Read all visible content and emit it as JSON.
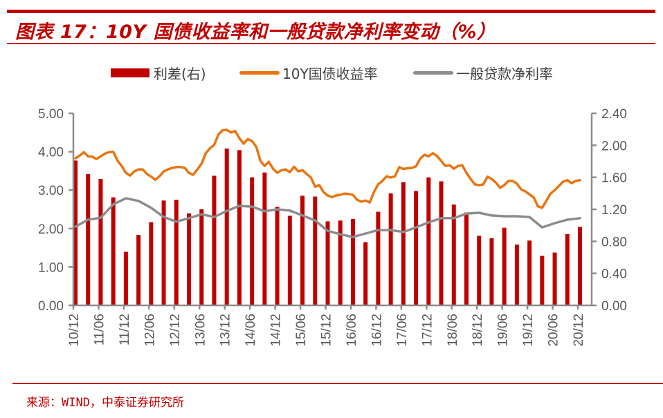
{
  "header": {
    "title": "图表 17：10Y 国债收益率和一般贷款净利率变动（%）"
  },
  "footer": {
    "source": "来源：WIND，中泰证券研究所"
  },
  "legend": {
    "items": [
      {
        "label": "利差(右)",
        "type": "bar",
        "color": "#c00000"
      },
      {
        "label": "10Y国债收益率",
        "type": "line",
        "color": "#e87511"
      },
      {
        "label": "一般贷款净利率",
        "type": "line",
        "color": "#8c8c8c"
      }
    ]
  },
  "chart_data": {
    "type": "bar+line",
    "title": "10Y 国债收益率和一般贷款净利率变动（%）",
    "x_tick_labels": [
      "10/12",
      "11/06",
      "11/12",
      "12/06",
      "12/12",
      "13/06",
      "13/12",
      "14/06",
      "14/12",
      "15/06",
      "15/12",
      "16/06",
      "16/12",
      "17/06",
      "17/12",
      "18/06",
      "18/12",
      "19/06",
      "19/12",
      "20/06",
      "20/12"
    ],
    "left_axis": {
      "min": 0,
      "max": 5,
      "ticks": [
        "0.00",
        "1.00",
        "2.00",
        "3.00",
        "4.00",
        "5.00"
      ]
    },
    "right_axis": {
      "min": 0,
      "max": 2.4,
      "ticks": [
        "0.00",
        "0.40",
        "0.80",
        "1.20",
        "1.60",
        "2.00",
        "2.40"
      ]
    },
    "legend_position": "top",
    "grid": false,
    "series": [
      {
        "name": "利差(右)",
        "type": "bar",
        "axis": "right",
        "color": "#c00000",
        "x": [
          "10/12",
          "11/03",
          "11/06",
          "11/09",
          "11/12",
          "12/03",
          "12/06",
          "12/09",
          "12/12",
          "13/03",
          "13/06",
          "13/09",
          "13/12",
          "14/03",
          "14/06",
          "14/09",
          "14/12",
          "15/03",
          "15/06",
          "15/09",
          "15/12",
          "16/03",
          "16/06",
          "16/09",
          "16/12",
          "17/03",
          "17/06",
          "17/09",
          "17/12",
          "18/03",
          "18/06",
          "18/09",
          "18/12",
          "19/03",
          "19/06",
          "19/09",
          "19/12",
          "20/03",
          "20/06",
          "20/09",
          "20/12"
        ],
        "values": [
          1.81,
          1.64,
          1.58,
          1.35,
          0.67,
          0.88,
          1.04,
          1.31,
          1.32,
          1.15,
          1.2,
          1.62,
          1.96,
          1.94,
          1.6,
          1.66,
          1.23,
          1.12,
          1.37,
          1.36,
          1.05,
          1.06,
          1.08,
          0.79,
          1.17,
          1.4,
          1.54,
          1.43,
          1.6,
          1.55,
          1.26,
          1.16,
          0.87,
          0.84,
          0.97,
          0.76,
          0.81,
          0.62,
          0.66,
          0.89,
          0.98
        ]
      },
      {
        "name": "10Y国债收益率",
        "type": "line",
        "axis": "left",
        "color": "#e87511",
        "start": "10/12",
        "frequency": "monthly",
        "values": [
          3.83,
          3.9,
          3.99,
          3.88,
          3.87,
          3.81,
          3.88,
          3.95,
          3.99,
          4.0,
          3.77,
          3.63,
          3.45,
          3.38,
          3.49,
          3.54,
          3.54,
          3.42,
          3.35,
          3.27,
          3.36,
          3.49,
          3.54,
          3.58,
          3.6,
          3.6,
          3.58,
          3.45,
          3.4,
          3.54,
          3.69,
          3.96,
          4.09,
          4.18,
          4.45,
          4.56,
          4.57,
          4.5,
          4.54,
          4.35,
          4.21,
          4.33,
          4.28,
          4.13,
          3.76,
          3.63,
          3.74,
          3.56,
          3.45,
          3.52,
          3.54,
          3.47,
          3.61,
          3.49,
          3.52,
          3.42,
          3.33,
          3.09,
          3.13,
          2.95,
          2.86,
          2.82,
          2.86,
          2.88,
          2.91,
          2.9,
          2.88,
          2.75,
          2.7,
          2.73,
          2.68,
          2.95,
          3.15,
          3.24,
          3.36,
          3.33,
          3.36,
          3.6,
          3.55,
          3.57,
          3.58,
          3.62,
          3.82,
          3.92,
          3.88,
          3.96,
          3.89,
          3.76,
          3.63,
          3.65,
          3.56,
          3.63,
          3.65,
          3.45,
          3.29,
          3.15,
          3.13,
          3.15,
          3.35,
          3.29,
          3.2,
          3.06,
          3.13,
          3.24,
          3.24,
          3.17,
          3.02,
          2.97,
          2.89,
          2.81,
          2.58,
          2.54,
          2.72,
          2.91,
          3.0,
          3.11,
          3.22,
          3.26,
          3.18,
          3.24,
          3.26
        ]
      },
      {
        "name": "一般贷款净利率",
        "type": "line",
        "axis": "left",
        "color": "#8c8c8c",
        "start": "10/12",
        "frequency": "quarterly",
        "values": [
          2.05,
          2.23,
          2.28,
          2.63,
          2.79,
          2.72,
          2.54,
          2.3,
          2.18,
          2.27,
          2.37,
          2.3,
          2.46,
          2.59,
          2.57,
          2.45,
          2.5,
          2.47,
          2.34,
          2.21,
          1.94,
          1.85,
          1.78,
          1.87,
          1.96,
          1.96,
          1.91,
          2.03,
          2.16,
          2.27,
          2.27,
          2.39,
          2.41,
          2.34,
          2.32,
          2.32,
          2.3,
          2.03,
          2.14,
          2.23,
          2.27
        ]
      }
    ]
  }
}
